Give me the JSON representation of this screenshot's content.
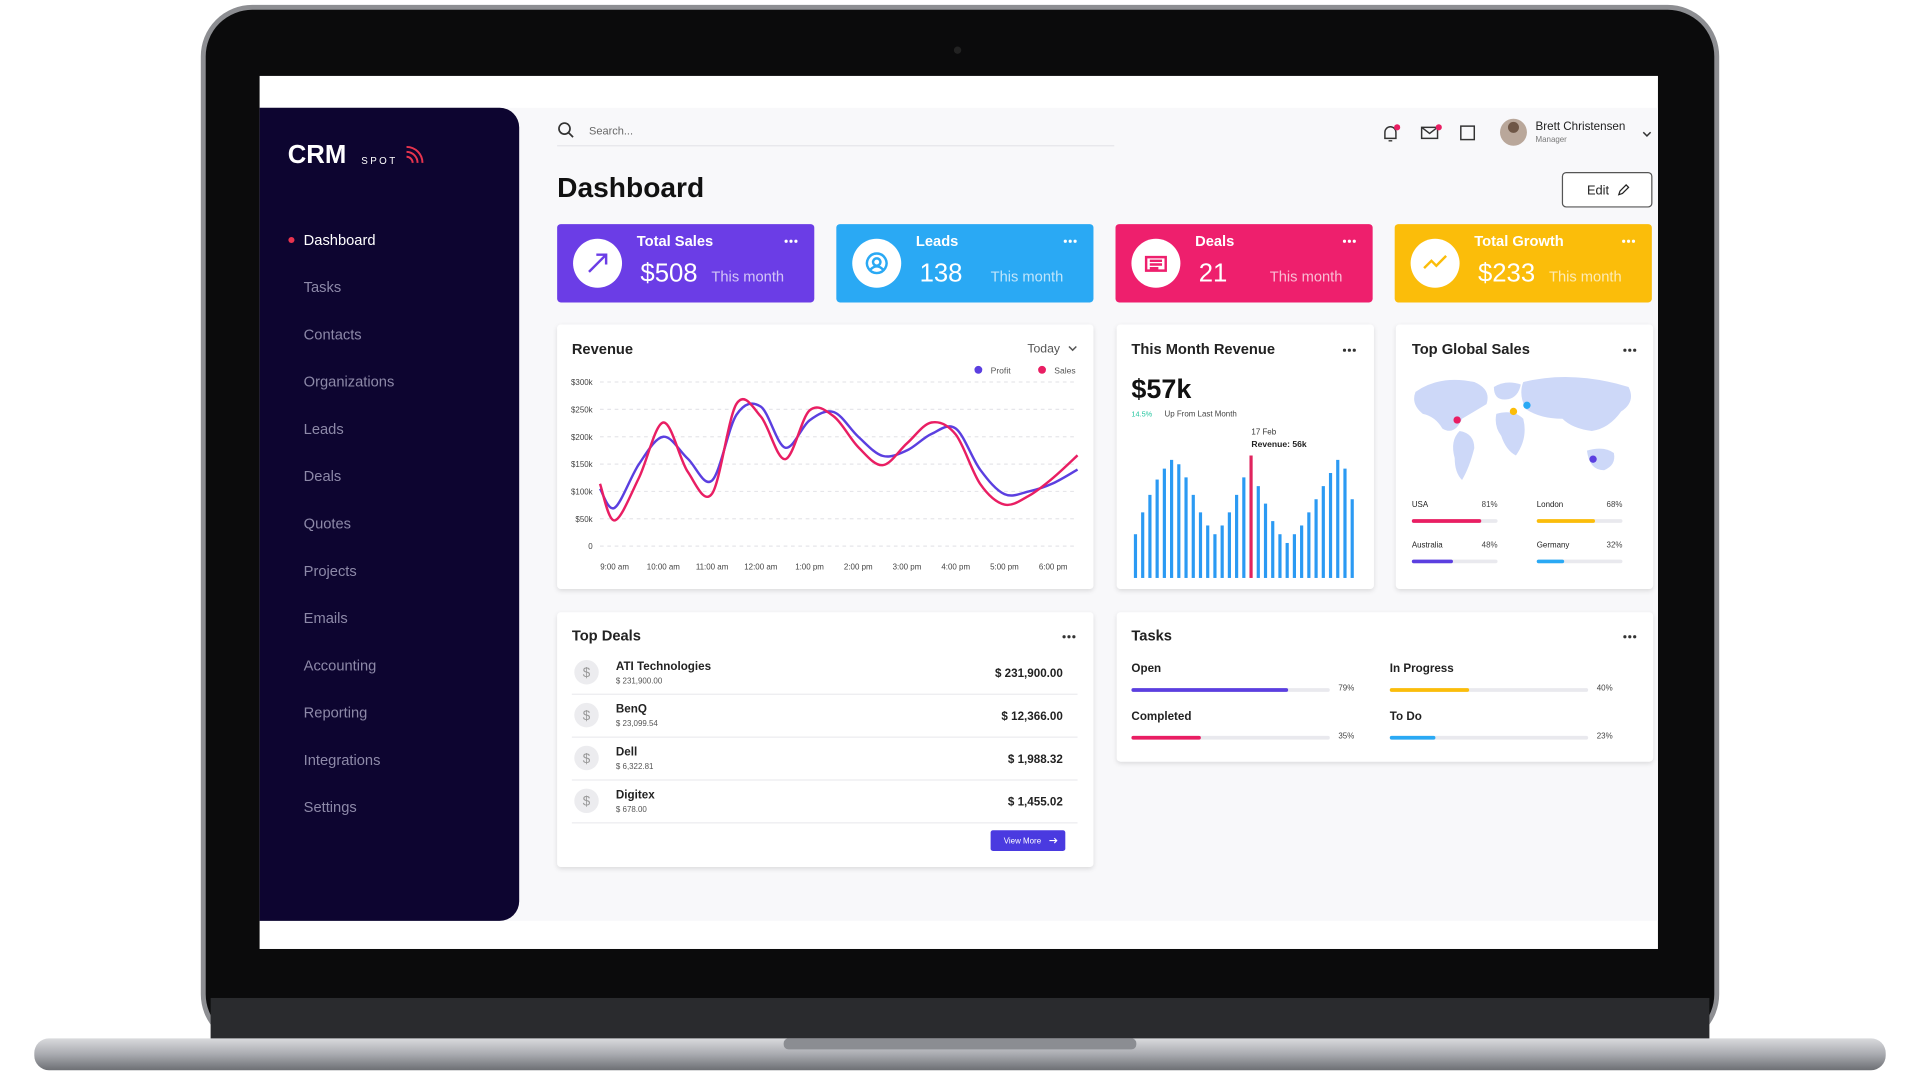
{
  "sidebar": {
    "logo": "CRM",
    "logo_sub": "SPOT",
    "menu": [
      "Dashboard",
      "Tasks",
      "Contacts",
      "Organizations",
      "Leads",
      "Deals",
      "Quotes",
      "Projects",
      "Emails",
      "Accounting",
      "Reporting",
      "Integrations",
      "Settings"
    ]
  },
  "header": {
    "search_placeholder": "Search...",
    "user": {
      "name": "Brett Christensen",
      "role": "Manager"
    }
  },
  "page_title": "Dashboard",
  "edit_button": "Edit",
  "stat_cards": [
    {
      "title": "Total Sales",
      "value": "$508",
      "period": "This month",
      "color": "#6b3de6"
    },
    {
      "title": "Leads",
      "value": "138",
      "period": "This month",
      "color": "#2aa9f4"
    },
    {
      "title": "Deals",
      "value": "21",
      "period": "This month",
      "color": "#ee1f6d"
    },
    {
      "title": "Total Growth",
      "value": "$233",
      "period": "This month",
      "color": "#fbbd0a"
    }
  ],
  "chart_data": [
    {
      "type": "line",
      "title": "Revenue",
      "range_select": "Today",
      "x": [
        8.7,
        9,
        9.5,
        10,
        10.5,
        11,
        11.5,
        12,
        12.5,
        13,
        13.5,
        14,
        14.5,
        15,
        15.5,
        16,
        16.5,
        17,
        17.5,
        18,
        18.5
      ],
      "xlim": [
        8.7,
        18.5
      ],
      "xticks": [
        {
          "value": 9,
          "label": "9:00 am"
        },
        {
          "value": 10,
          "label": "10:00 am"
        },
        {
          "value": 11,
          "label": "11:00 am"
        },
        {
          "value": 12,
          "label": "12:00 am"
        },
        {
          "value": 13,
          "label": "1:00 pm"
        },
        {
          "value": 14,
          "label": "2:00 pm"
        },
        {
          "value": 15,
          "label": "3:00 pm"
        },
        {
          "value": 16,
          "label": "4:00 pm"
        },
        {
          "value": 17,
          "label": "5:00 pm"
        },
        {
          "value": 18,
          "label": "6:00 pm"
        }
      ],
      "ylim": [
        0,
        300000
      ],
      "yticks": [
        0,
        {
          "value": 50000,
          "label": "$50k"
        },
        {
          "value": 100000,
          "label": "$100k"
        },
        {
          "value": 150000,
          "label": "$150k"
        },
        {
          "value": 200000,
          "label": "$200k"
        },
        {
          "value": 250000,
          "label": "$250k"
        },
        {
          "value": 300000,
          "label": "$300k"
        }
      ],
      "grid": true,
      "series": [
        {
          "name": "Profit",
          "color": "#5b3fe0",
          "values": [
            105000,
            70000,
            150000,
            200000,
            160000,
            120000,
            240000,
            255000,
            180000,
            230000,
            245000,
            200000,
            165000,
            175000,
            205000,
            215000,
            140000,
            95000,
            100000,
            115000,
            140000
          ]
        },
        {
          "name": "Sales",
          "color": "#e91e63",
          "values": [
            114000,
            47000,
            125000,
            226000,
            136000,
            96000,
            260000,
            237000,
            159000,
            248000,
            237000,
            181000,
            148000,
            188000,
            226000,
            204000,
            114000,
            76000,
            92000,
            125000,
            166000
          ]
        }
      ]
    },
    {
      "type": "bar",
      "title": "This Month Revenue",
      "headline": "$57k",
      "change": "14.5%",
      "change_text": "Up From Last Month",
      "color": "#2b9af3",
      "highlight_color": "#e0245e",
      "annotation": {
        "index": 16,
        "date": "17 Feb",
        "text": "Revenue: 56k"
      },
      "values": [
        20,
        30,
        38,
        45,
        50,
        54,
        52,
        46,
        38,
        30,
        24,
        20,
        24,
        30,
        38,
        46,
        56,
        42,
        34,
        26,
        20,
        16,
        20,
        24,
        30,
        36,
        42,
        48,
        54,
        50,
        36
      ]
    }
  ],
  "global_sales": {
    "title": "Top Global Sales",
    "items": [
      {
        "name": "USA",
        "value": 81,
        "label": "81%",
        "color": "#e91e63"
      },
      {
        "name": "London",
        "value": 68,
        "label": "68%",
        "color": "#fbbd0a"
      },
      {
        "name": "Australia",
        "value": 48,
        "label": "48%",
        "color": "#5b3fe0"
      },
      {
        "name": "Germany",
        "value": 32,
        "label": "32%",
        "color": "#2aa9f4"
      }
    ]
  },
  "top_deals": {
    "title": "Top Deals",
    "rows": [
      {
        "company": "ATI Technologies",
        "subtitle": "$ 231,900.00",
        "amount": "$ 231,900.00"
      },
      {
        "company": "BenQ",
        "subtitle": "$ 23,099.54",
        "amount": "$ 12,366.00"
      },
      {
        "company": "Dell",
        "subtitle": "$ 6,322.81",
        "amount": "$ 1,988.32"
      },
      {
        "company": "Digitex",
        "subtitle": "$ 678.00",
        "amount": "$ 1,455.02"
      }
    ],
    "button": "View More"
  },
  "tasks": {
    "title": "Tasks",
    "items": [
      {
        "name": "Open",
        "value": 79,
        "label": "79%",
        "color": "#5b3fe0"
      },
      {
        "name": "In Progress",
        "value": 40,
        "label": "40%",
        "color": "#fbbd0a"
      },
      {
        "name": "Completed",
        "value": 35,
        "label": "35%",
        "color": "#e91e63"
      },
      {
        "name": "To Do",
        "value": 23,
        "label": "23%",
        "color": "#2aa9f4"
      }
    ]
  }
}
